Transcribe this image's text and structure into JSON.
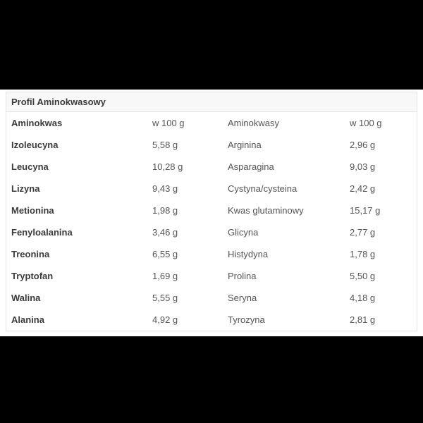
{
  "panel": {
    "title": "Profil Aminokwasowy"
  },
  "table": {
    "columns": [
      "Aminokwas",
      "w 100 g",
      "Aminokwasy",
      "w 100 g"
    ],
    "rows": [
      [
        "Izoleucyna",
        "5,58 g",
        "Arginina",
        "2,96 g"
      ],
      [
        "Leucyna",
        "10,28 g",
        "Asparagina",
        "9,03 g"
      ],
      [
        "Lizyna",
        "9,43 g",
        "Cystyna/cysteina",
        "2,42 g"
      ],
      [
        "Metionina",
        "1,98 g",
        "Kwas glutaminowy",
        "15,17 g"
      ],
      [
        "Fenyloalanina",
        "3,46 g",
        "Glicyna",
        "2,77 g"
      ],
      [
        "Treonina",
        "6,55 g",
        "Histydyna",
        "1,78 g"
      ],
      [
        "Tryptofan",
        "1,69 g",
        "Prolina",
        "5,50 g"
      ],
      [
        "Walina",
        "5,55 g",
        "Seryna",
        "4,18 g"
      ],
      [
        "Alanina",
        "4,92 g",
        "Tyrozyna",
        "2,81 g"
      ]
    ]
  },
  "colors": {
    "page_background": "#000000",
    "content_band_background": "#ffffff",
    "panel_border": "#e4e4e4",
    "title_band_background": "#f8f8f8",
    "text_primary": "#3b3b3b",
    "text_secondary": "#555555"
  }
}
